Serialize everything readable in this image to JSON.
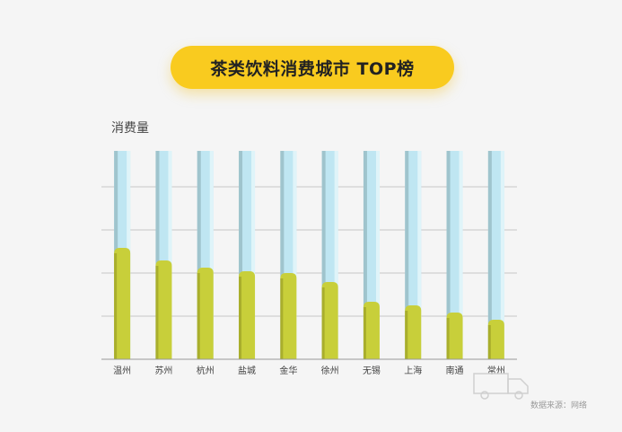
{
  "chart_data": {
    "type": "bar",
    "title": "茶类饮料消费城市 TOP榜",
    "ylabel": "消费量",
    "xlabel": "",
    "categories": [
      "温州",
      "苏州",
      "杭州",
      "盐城",
      "金华",
      "徐州",
      "无锡",
      "上海",
      "南通",
      "常州"
    ],
    "values": [
      62,
      55,
      51,
      49,
      48,
      43,
      32,
      30,
      26,
      22
    ],
    "ylim": [
      0,
      120
    ],
    "grid": true,
    "legend": "none",
    "colors": {
      "track": "#bfe6f2",
      "track_shade": "#9fc4cd",
      "track_light": "#dff4f9",
      "fill": "#c8cf3a",
      "fill_shade": "#a9ae2c",
      "grid": "#c8c8c8",
      "axis": "#999999",
      "title_bg": "#f9cb1f"
    }
  },
  "footer": {
    "source": "数据来源：网络"
  }
}
